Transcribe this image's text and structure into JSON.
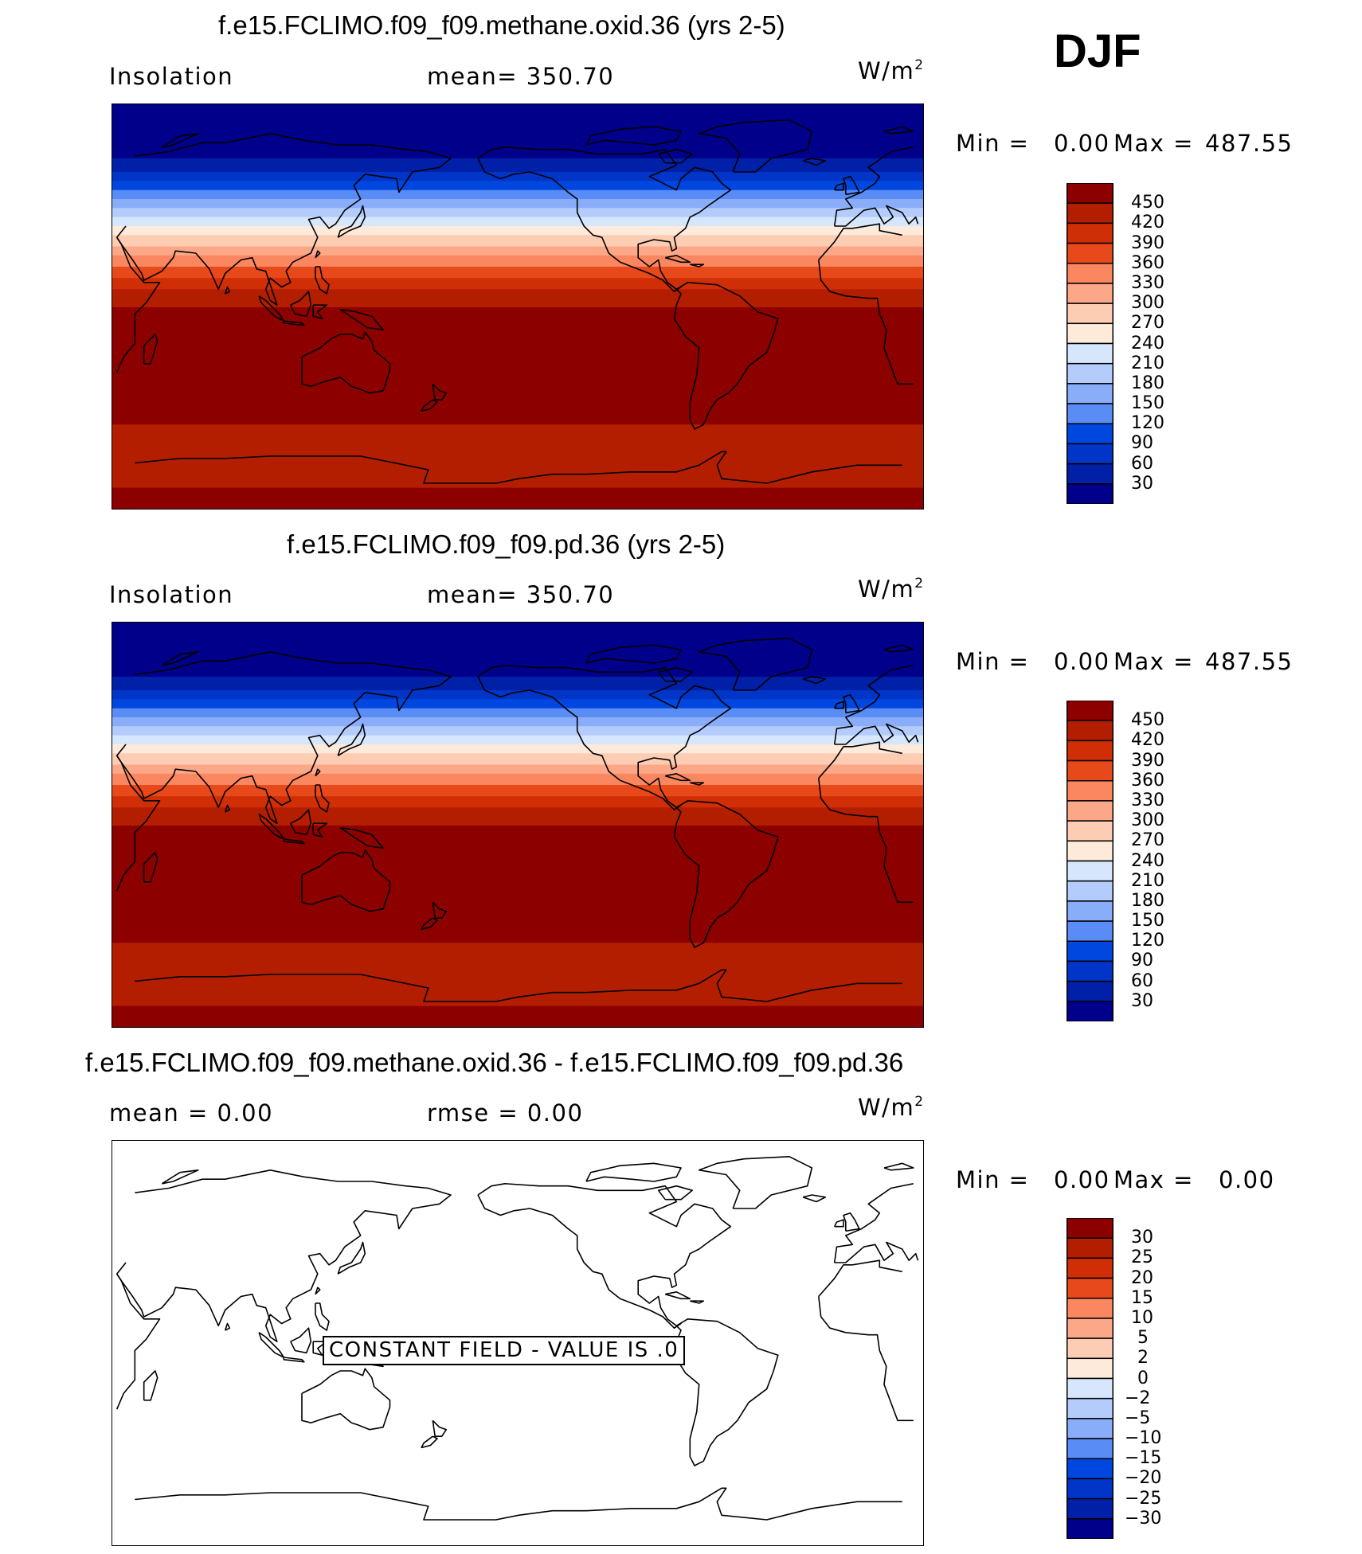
{
  "season": "DJF",
  "colors": {
    "main_scale": [
      "#00008b",
      "#0020a8",
      "#0035c8",
      "#0047e0",
      "#2d6cf0",
      "#5a8cf5",
      "#8aadfa",
      "#b4ccfc",
      "#d6e6fd",
      "#fdeadb",
      "#fcccb3",
      "#fca888",
      "#fa8760",
      "#f4683a",
      "#e8491a",
      "#cf2e06",
      "#b31e00",
      "#8c0000"
    ],
    "diff_scale": [
      "#00008b",
      "#0020a8",
      "#0035c8",
      "#0047e0",
      "#2d6cf0",
      "#5a8cf5",
      "#8aadfa",
      "#b4ccfc",
      "#d6e6fd",
      "#fdeadb",
      "#fcccb3",
      "#fca888",
      "#fa8760",
      "#f4683a",
      "#e8491a",
      "#cf2e06",
      "#b31e00",
      "#8c0000"
    ],
    "coastline": "#000000"
  },
  "panels": [
    {
      "title": "f.e15.FCLIMO.f09_f09.methane.oxid.36 (yrs 2-5)",
      "left_label": "Insolation",
      "center_label": "mean=  350.70",
      "units": "W/m",
      "units_sup": "2",
      "min_label": "Min  =",
      "min_value": "0.00",
      "max_label": "Max  =",
      "max_value": "487.55",
      "ticks": [
        "450",
        "420",
        "390",
        "360",
        "330",
        "300",
        "270",
        "240",
        "210",
        "180",
        "150",
        "120",
        "90",
        "60",
        "30"
      ]
    },
    {
      "title": "f.e15.FCLIMO.f09_f09.pd.36 (yrs 2-5)",
      "left_label": "Insolation",
      "center_label": "mean=  350.70",
      "units": "W/m",
      "units_sup": "2",
      "min_label": "Min  =",
      "min_value": "0.00",
      "max_label": "Max  =",
      "max_value": "487.55",
      "ticks": [
        "450",
        "420",
        "390",
        "360",
        "330",
        "300",
        "270",
        "240",
        "210",
        "180",
        "150",
        "120",
        "90",
        "60",
        "30"
      ]
    },
    {
      "title": "f.e15.FCLIMO.f09_f09.methane.oxid.36 - f.e15.FCLIMO.f09_f09.pd.36",
      "left_label": "mean  =     0.00",
      "center_label": "rmse  =     0.00",
      "units": "W/m",
      "units_sup": "2",
      "min_label": "Min  =",
      "min_value": "0.00",
      "max_label": "Max  =",
      "max_value": "0.00",
      "ticks": [
        "30",
        "25",
        "20",
        "15",
        "10",
        "5",
        "2",
        "0",
        "−2",
        "−5",
        "−10",
        "−15",
        "−20",
        "−25",
        "−30"
      ],
      "annotation": "CONSTANT FIELD - VALUE IS .0"
    }
  ],
  "chart_data": [
    {
      "type": "heatmap",
      "title": "f.e15.FCLIMO.f09_f09.methane.oxid.36 (yrs 2-5)",
      "variable": "Insolation",
      "units": "W/m2",
      "season": "DJF",
      "mean": 350.7,
      "min": 0.0,
      "max": 487.55,
      "contour_levels": [
        30,
        60,
        90,
        120,
        150,
        180,
        210,
        240,
        270,
        300,
        330,
        360,
        390,
        420,
        450
      ],
      "zonal_band_values": [
        {
          "lat_from": 90,
          "lat_to": 66,
          "value": 0
        },
        {
          "lat_from": 66,
          "lat_to": 60,
          "value": 45
        },
        {
          "lat_from": 60,
          "lat_to": 56,
          "value": 75
        },
        {
          "lat_from": 56,
          "lat_to": 52,
          "value": 105
        },
        {
          "lat_from": 52,
          "lat_to": 48,
          "value": 135
        },
        {
          "lat_from": 48,
          "lat_to": 44,
          "value": 165
        },
        {
          "lat_from": 44,
          "lat_to": 40,
          "value": 195
        },
        {
          "lat_from": 40,
          "lat_to": 36,
          "value": 225
        },
        {
          "lat_from": 36,
          "lat_to": 32,
          "value": 255
        },
        {
          "lat_from": 32,
          "lat_to": 27,
          "value": 285
        },
        {
          "lat_from": 27,
          "lat_to": 23,
          "value": 315
        },
        {
          "lat_from": 23,
          "lat_to": 18,
          "value": 345
        },
        {
          "lat_from": 18,
          "lat_to": 13,
          "value": 375
        },
        {
          "lat_from": 13,
          "lat_to": 8,
          "value": 405
        },
        {
          "lat_from": 8,
          "lat_to": 0,
          "value": 435
        },
        {
          "lat_from": 0,
          "lat_to": -52,
          "value": 470
        },
        {
          "lat_from": -52,
          "lat_to": -80,
          "value": 440
        },
        {
          "lat_from": -80,
          "lat_to": -90,
          "value": 470
        }
      ]
    },
    {
      "type": "heatmap",
      "title": "f.e15.FCLIMO.f09_f09.pd.36 (yrs 2-5)",
      "variable": "Insolation",
      "units": "W/m2",
      "season": "DJF",
      "mean": 350.7,
      "min": 0.0,
      "max": 487.55,
      "contour_levels": [
        30,
        60,
        90,
        120,
        150,
        180,
        210,
        240,
        270,
        300,
        330,
        360,
        390,
        420,
        450
      ],
      "zonal_band_values": [
        {
          "lat_from": 90,
          "lat_to": 66,
          "value": 0
        },
        {
          "lat_from": 66,
          "lat_to": 60,
          "value": 45
        },
        {
          "lat_from": 60,
          "lat_to": 56,
          "value": 75
        },
        {
          "lat_from": 56,
          "lat_to": 52,
          "value": 105
        },
        {
          "lat_from": 52,
          "lat_to": 48,
          "value": 135
        },
        {
          "lat_from": 48,
          "lat_to": 44,
          "value": 165
        },
        {
          "lat_from": 44,
          "lat_to": 40,
          "value": 195
        },
        {
          "lat_from": 40,
          "lat_to": 36,
          "value": 225
        },
        {
          "lat_from": 36,
          "lat_to": 32,
          "value": 255
        },
        {
          "lat_from": 32,
          "lat_to": 27,
          "value": 285
        },
        {
          "lat_from": 27,
          "lat_to": 23,
          "value": 315
        },
        {
          "lat_from": 23,
          "lat_to": 18,
          "value": 345
        },
        {
          "lat_from": 18,
          "lat_to": 13,
          "value": 375
        },
        {
          "lat_from": 13,
          "lat_to": 8,
          "value": 405
        },
        {
          "lat_from": 8,
          "lat_to": 0,
          "value": 435
        },
        {
          "lat_from": 0,
          "lat_to": -52,
          "value": 470
        },
        {
          "lat_from": -52,
          "lat_to": -80,
          "value": 440
        },
        {
          "lat_from": -80,
          "lat_to": -90,
          "value": 470
        }
      ]
    },
    {
      "type": "heatmap",
      "title": "f.e15.FCLIMO.f09_f09.methane.oxid.36 - f.e15.FCLIMO.f09_f09.pd.36",
      "units": "W/m2",
      "season": "DJF",
      "mean": 0.0,
      "rmse": 0.0,
      "min": 0.0,
      "max": 0.0,
      "contour_levels": [
        -30,
        -25,
        -20,
        -15,
        -10,
        -5,
        -2,
        0,
        2,
        5,
        10,
        15,
        20,
        25,
        30
      ],
      "constant_value": 0,
      "annotation": "CONSTANT FIELD - VALUE IS .0"
    }
  ]
}
